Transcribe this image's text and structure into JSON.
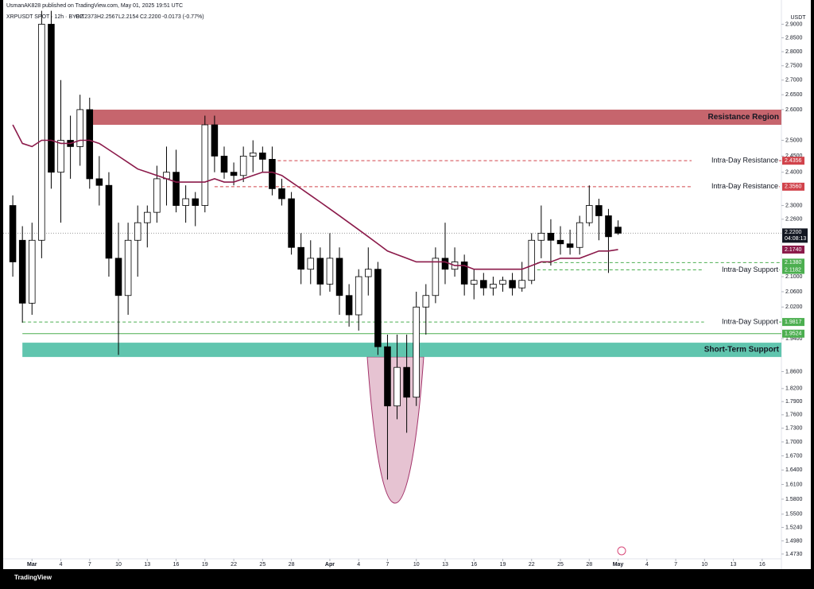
{
  "header": {
    "publisher": "UsmanAK828 published on TradingView.com, May 01, 2025 19:51 UTC",
    "symbol": "XRPUSDT SPOT · 12h · BYBIT",
    "ohlc": [
      "O2.2373",
      "H2.2567",
      "L2.2154",
      "C2.2200"
    ],
    "change": "-0.0173 (-0.77%)"
  },
  "footer": {
    "brand": "TradingView"
  },
  "chart_data": {
    "type": "candlestick",
    "currency": "USDT",
    "log_scale": true,
    "grid": false,
    "xlim": [
      "2025-02-26",
      "2025-05-18"
    ],
    "ylim": [
      1.464,
      2.937
    ],
    "xticks": [
      {
        "value": "2025-03-01",
        "label": "Mar"
      },
      {
        "value": "2025-03-04",
        "label": "4"
      },
      {
        "value": "2025-03-07",
        "label": "7"
      },
      {
        "value": "2025-03-10",
        "label": "10"
      },
      {
        "value": "2025-03-13",
        "label": "13"
      },
      {
        "value": "2025-03-16",
        "label": "16"
      },
      {
        "value": "2025-03-19",
        "label": "19"
      },
      {
        "value": "2025-03-22",
        "label": "22"
      },
      {
        "value": "2025-03-25",
        "label": "25"
      },
      {
        "value": "2025-03-28",
        "label": "28"
      },
      {
        "value": "2025-04-01",
        "label": "Apr"
      },
      {
        "value": "2025-04-04",
        "label": "4"
      },
      {
        "value": "2025-04-07",
        "label": "7"
      },
      {
        "value": "2025-04-10",
        "label": "10"
      },
      {
        "value": "2025-04-13",
        "label": "13"
      },
      {
        "value": "2025-04-16",
        "label": "16"
      },
      {
        "value": "2025-04-19",
        "label": "19"
      },
      {
        "value": "2025-04-22",
        "label": "22"
      },
      {
        "value": "2025-04-25",
        "label": "25"
      },
      {
        "value": "2025-04-28",
        "label": "28"
      },
      {
        "value": "2025-05-01",
        "label": "May"
      },
      {
        "value": "2025-05-04",
        "label": "4"
      },
      {
        "value": "2025-05-07",
        "label": "7"
      },
      {
        "value": "2025-05-10",
        "label": "10"
      },
      {
        "value": "2025-05-13",
        "label": "13"
      },
      {
        "value": "2025-05-16",
        "label": "16"
      }
    ],
    "yticks": [
      {
        "value": 2.9,
        "label": "2.9000"
      },
      {
        "value": 2.85,
        "label": "2.8500"
      },
      {
        "value": 2.8,
        "label": "2.8000"
      },
      {
        "value": 2.75,
        "label": "2.7500"
      },
      {
        "value": 2.7,
        "label": "2.7000"
      },
      {
        "value": 2.65,
        "label": "2.6500"
      },
      {
        "value": 2.6,
        "label": "2.6000"
      },
      {
        "value": 2.5,
        "label": "2.5000"
      },
      {
        "value": 2.45,
        "label": "2.4500"
      },
      {
        "value": 2.4,
        "label": "2.4000"
      },
      {
        "value": 2.3,
        "label": "2.3000"
      },
      {
        "value": 2.26,
        "label": "2.2600"
      },
      {
        "value": 2.1,
        "label": "2.1000"
      },
      {
        "value": 2.06,
        "label": "2.0600"
      },
      {
        "value": 2.02,
        "label": "2.0200"
      },
      {
        "value": 1.94,
        "label": "1.9400"
      },
      {
        "value": 1.86,
        "label": "1.8600"
      },
      {
        "value": 1.82,
        "label": "1.8200"
      },
      {
        "value": 1.79,
        "label": "1.7900"
      },
      {
        "value": 1.76,
        "label": "1.7600"
      },
      {
        "value": 1.73,
        "label": "1.7300"
      },
      {
        "value": 1.7,
        "label": "1.7000"
      },
      {
        "value": 1.67,
        "label": "1.6700"
      },
      {
        "value": 1.64,
        "label": "1.6400"
      },
      {
        "value": 1.61,
        "label": "1.6100"
      },
      {
        "value": 1.58,
        "label": "1.5800"
      },
      {
        "value": 1.55,
        "label": "1.5500"
      },
      {
        "value": 1.524,
        "label": "1.5240"
      },
      {
        "value": 1.498,
        "label": "1.4980"
      },
      {
        "value": 1.473,
        "label": "1.4730"
      }
    ],
    "x": [
      "2025-02-27",
      "2025-02-28",
      "2025-03-01",
      "2025-03-02",
      "2025-03-03",
      "2025-03-04",
      "2025-03-05",
      "2025-03-06",
      "2025-03-07",
      "2025-03-08",
      "2025-03-09",
      "2025-03-10",
      "2025-03-11",
      "2025-03-12",
      "2025-03-13",
      "2025-03-14",
      "2025-03-15",
      "2025-03-16",
      "2025-03-17",
      "2025-03-18",
      "2025-03-19",
      "2025-03-20",
      "2025-03-21",
      "2025-03-22",
      "2025-03-23",
      "2025-03-24",
      "2025-03-25",
      "2025-03-26",
      "2025-03-27",
      "2025-03-28",
      "2025-03-29",
      "2025-03-30",
      "2025-03-31",
      "2025-04-01",
      "2025-04-02",
      "2025-04-03",
      "2025-04-04",
      "2025-04-05",
      "2025-04-06",
      "2025-04-07",
      "2025-04-08",
      "2025-04-09",
      "2025-04-10",
      "2025-04-11",
      "2025-04-12",
      "2025-04-13",
      "2025-04-14",
      "2025-04-15",
      "2025-04-16",
      "2025-04-17",
      "2025-04-18",
      "2025-04-19",
      "2025-04-20",
      "2025-04-21",
      "2025-04-22",
      "2025-04-23",
      "2025-04-24",
      "2025-04-25",
      "2025-04-26",
      "2025-04-27",
      "2025-04-28",
      "2025-04-29",
      "2025-04-30",
      "2025-05-01"
    ],
    "open": [
      2.3,
      2.2,
      2.03,
      2.2,
      2.9,
      2.4,
      2.5,
      2.48,
      2.6,
      2.38,
      2.36,
      2.15,
      2.05,
      2.2,
      2.25,
      2.28,
      2.38,
      2.4,
      2.3,
      2.32,
      2.3,
      2.55,
      2.45,
      2.4,
      2.39,
      2.45,
      2.46,
      2.44,
      2.35,
      2.32,
      2.18,
      2.12,
      2.15,
      2.08,
      2.15,
      2.05,
      2.0,
      2.1,
      2.12,
      1.92,
      1.78,
      1.87,
      1.8,
      2.02,
      2.05,
      2.15,
      2.12,
      2.14,
      2.08,
      2.09,
      2.07,
      2.08,
      2.09,
      2.07,
      2.09,
      2.2,
      2.22,
      2.2,
      2.19,
      2.18,
      2.25,
      2.3,
      2.27,
      2.2373
    ],
    "high": [
      2.33,
      2.24,
      2.25,
      2.95,
      2.95,
      2.7,
      2.58,
      2.65,
      2.64,
      2.45,
      2.4,
      2.25,
      2.25,
      2.3,
      2.3,
      2.42,
      2.48,
      2.47,
      2.36,
      2.34,
      2.58,
      2.58,
      2.48,
      2.43,
      2.48,
      2.5,
      2.48,
      2.48,
      2.38,
      2.34,
      2.22,
      2.2,
      2.18,
      2.22,
      2.18,
      2.08,
      2.12,
      2.18,
      2.14,
      1.95,
      1.95,
      1.95,
      2.06,
      2.08,
      2.18,
      2.25,
      2.18,
      2.16,
      2.12,
      2.11,
      2.1,
      2.1,
      2.11,
      2.14,
      2.22,
      2.3,
      2.26,
      2.24,
      2.23,
      2.27,
      2.36,
      2.32,
      2.29,
      2.2567
    ],
    "low": [
      2.1,
      1.98,
      2.0,
      2.15,
      2.35,
      2.25,
      2.38,
      2.42,
      2.35,
      2.3,
      2.1,
      1.9,
      2.0,
      2.1,
      2.18,
      2.25,
      2.3,
      2.28,
      2.25,
      2.24,
      2.28,
      2.4,
      2.38,
      2.36,
      2.37,
      2.4,
      2.4,
      2.33,
      2.3,
      2.16,
      2.08,
      2.08,
      2.05,
      2.06,
      2.0,
      1.97,
      1.96,
      2.05,
      1.9,
      1.62,
      1.75,
      1.72,
      1.78,
      1.95,
      2.03,
      2.08,
      2.1,
      2.05,
      2.04,
      2.05,
      2.05,
      2.06,
      2.05,
      2.06,
      2.08,
      2.15,
      2.13,
      2.16,
      2.16,
      2.16,
      2.24,
      2.2,
      2.11,
      2.2154
    ],
    "close": [
      2.14,
      2.03,
      2.2,
      2.9,
      2.4,
      2.5,
      2.48,
      2.6,
      2.38,
      2.36,
      2.15,
      2.05,
      2.2,
      2.25,
      2.28,
      2.38,
      2.4,
      2.3,
      2.32,
      2.3,
      2.55,
      2.45,
      2.4,
      2.39,
      2.45,
      2.46,
      2.44,
      2.35,
      2.32,
      2.18,
      2.12,
      2.15,
      2.08,
      2.15,
      2.05,
      2.0,
      2.1,
      2.12,
      1.92,
      1.78,
      1.87,
      1.8,
      2.02,
      2.05,
      2.15,
      2.12,
      2.14,
      2.08,
      2.09,
      2.07,
      2.08,
      2.09,
      2.07,
      2.09,
      2.2,
      2.22,
      2.2,
      2.19,
      2.18,
      2.25,
      2.3,
      2.27,
      2.21,
      2.22
    ],
    "ma": {
      "color": "#8b1a4a",
      "values": [
        2.55,
        2.49,
        2.48,
        2.5,
        2.5,
        2.49,
        2.49,
        2.5,
        2.5,
        2.49,
        2.47,
        2.45,
        2.43,
        2.41,
        2.4,
        2.39,
        2.38,
        2.37,
        2.37,
        2.37,
        2.37,
        2.38,
        2.37,
        2.37,
        2.38,
        2.39,
        2.4,
        2.4,
        2.39,
        2.37,
        2.35,
        2.33,
        2.31,
        2.29,
        2.27,
        2.25,
        2.23,
        2.21,
        2.19,
        2.17,
        2.16,
        2.15,
        2.14,
        2.14,
        2.14,
        2.14,
        2.13,
        2.13,
        2.12,
        2.12,
        2.12,
        2.12,
        2.12,
        2.12,
        2.13,
        2.14,
        2.14,
        2.15,
        2.15,
        2.15,
        2.16,
        2.17,
        2.17,
        2.174
      ],
      "value_label": "2.1740"
    },
    "last_price": {
      "value": 2.22,
      "value_label": "2.2200",
      "countdown": "04:08:13"
    },
    "zones": [
      {
        "text": "Resistance Region",
        "low": 2.55,
        "high": 2.6,
        "start": "2025-03-07",
        "color": "#c0545d"
      },
      {
        "text": "Short-Term Support",
        "low": 1.895,
        "high": 1.93,
        "start": "2025-02-28",
        "color": "#4fbfa5"
      }
    ],
    "levels": [
      {
        "text": "Intra-Day Resistance",
        "value": 2.4356,
        "start": "2025-03-26",
        "color": "#d1434b",
        "dashed": true
      },
      {
        "text": "Intra-Day Resistance",
        "value": 2.356,
        "value_label": "2.3560",
        "start": "2025-03-20",
        "color": "#d1434b",
        "dashed": true
      },
      {
        "value": 2.138,
        "value_label": "2.1380",
        "start": "2025-04-22",
        "color": "#4caf50",
        "dashed": true
      },
      {
        "text": "Intra-Day Support",
        "value": 2.1182,
        "start": "2025-04-22",
        "color": "#4caf50",
        "dashed": true
      },
      {
        "text": "Intra-Day Support",
        "value": 1.9817,
        "start": "2025-02-28",
        "color": "#4caf50",
        "dashed": true
      },
      {
        "value": 1.9524,
        "start": "2025-02-28",
        "color": "#4caf50",
        "dashed": false
      }
    ]
  }
}
